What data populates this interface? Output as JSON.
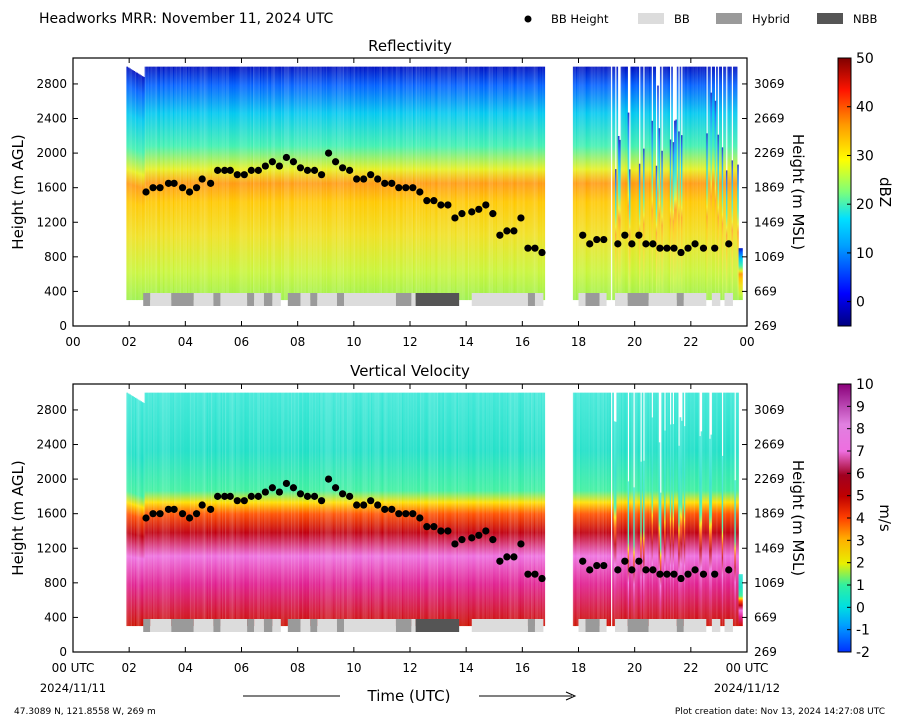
{
  "header": {
    "title": "Headworks MRR:  November 11, 2024 UTC",
    "legend": [
      {
        "label": "BB Height",
        "kind": "marker",
        "color": "#000000"
      },
      {
        "label": "BB",
        "kind": "patch",
        "color": "#dcdcdc"
      },
      {
        "label": "Hybrid",
        "kind": "patch",
        "color": "#9a9a9a"
      },
      {
        "label": "NBB",
        "kind": "patch",
        "color": "#555555"
      }
    ]
  },
  "chart_data": [
    {
      "type": "heatmap",
      "title": "Reflectivity",
      "ylabel": "Height (m AGL)",
      "ylabel_right": "Height (m MSL)",
      "colorbar_label": "dBZ",
      "colorbar_ticks": [
        "50",
        "40",
        "30",
        "20",
        "10",
        "0"
      ],
      "colorbar_range": [
        -5,
        50
      ],
      "xlim": [
        0,
        24
      ],
      "ylim": [
        0,
        3100
      ],
      "x_ticks": [
        "00",
        "02",
        "04",
        "06",
        "08",
        "10",
        "12",
        "14",
        "16",
        "18",
        "20",
        "22",
        "00"
      ],
      "y_ticks": [
        "0",
        "400",
        "800",
        "1200",
        "1600",
        "2000",
        "2400",
        "2800"
      ],
      "y_ticks_right": [
        "269",
        "669",
        "1069",
        "1469",
        "1869",
        "2269",
        "2669",
        "3069"
      ]
    },
    {
      "type": "heatmap",
      "title": "Vertical Velocity",
      "ylabel": "Height (m AGL)",
      "ylabel_right": "Height (m MSL)",
      "colorbar_label": "m/s",
      "colorbar_ticks": [
        "10",
        "9",
        "8",
        "7",
        "6",
        "5",
        "4",
        "3",
        "2",
        "1",
        "0",
        "-1",
        "-2"
      ],
      "colorbar_range": [
        -2,
        10
      ],
      "xlim": [
        0,
        24
      ],
      "ylim": [
        0,
        3100
      ],
      "x_ticks": [
        "00 UTC",
        "02",
        "04",
        "06",
        "08",
        "10",
        "12",
        "14",
        "16",
        "18",
        "20",
        "22",
        "00 UTC"
      ],
      "y_ticks": [
        "0",
        "400",
        "800",
        "1200",
        "1600",
        "2000",
        "2400",
        "2800"
      ],
      "y_ticks_right": [
        "269",
        "669",
        "1069",
        "1469",
        "1869",
        "2269",
        "2669",
        "3069"
      ]
    }
  ],
  "bb_height": {
    "x": [
      2.6,
      2.85,
      3.1,
      3.4,
      3.6,
      3.9,
      4.15,
      4.4,
      4.6,
      4.9,
      5.15,
      5.4,
      5.6,
      5.85,
      6.1,
      6.35,
      6.6,
      6.85,
      7.1,
      7.35,
      7.6,
      7.85,
      8.1,
      8.35,
      8.6,
      8.85,
      9.1,
      9.35,
      9.6,
      9.85,
      10.1,
      10.35,
      10.6,
      10.85,
      11.1,
      11.35,
      11.6,
      11.85,
      12.1,
      12.35,
      12.6,
      12.85,
      13.1,
      13.35,
      13.6,
      13.85,
      14.2,
      14.45,
      14.7,
      14.95,
      15.2,
      15.45,
      15.7,
      15.95,
      16.2,
      16.45,
      16.7,
      18.15,
      18.4,
      18.65,
      18.9,
      19.4,
      19.65,
      19.9,
      20.15,
      20.4,
      20.65,
      20.9,
      21.15,
      21.4,
      21.65,
      21.9,
      22.15,
      22.45,
      22.85,
      23.35
    ],
    "y": [
      1550,
      1600,
      1600,
      1650,
      1650,
      1600,
      1550,
      1600,
      1700,
      1650,
      1800,
      1800,
      1800,
      1750,
      1750,
      1800,
      1800,
      1850,
      1900,
      1850,
      1950,
      1900,
      1830,
      1800,
      1800,
      1750,
      2000,
      1900,
      1830,
      1800,
      1700,
      1700,
      1750,
      1700,
      1650,
      1650,
      1600,
      1600,
      1600,
      1550,
      1450,
      1450,
      1400,
      1400,
      1250,
      1300,
      1320,
      1350,
      1400,
      1300,
      1050,
      1100,
      1100,
      1250,
      900,
      900,
      850,
      1050,
      950,
      1000,
      1000,
      950,
      1050,
      950,
      1050,
      950,
      950,
      900,
      900,
      900,
      850,
      900,
      950,
      900,
      900,
      950
    ]
  },
  "bb_type": [
    {
      "start": 2.5,
      "end": 2.75,
      "type": "Hybrid"
    },
    {
      "start": 2.75,
      "end": 3.5,
      "type": "BB"
    },
    {
      "start": 3.5,
      "end": 4.3,
      "type": "Hybrid"
    },
    {
      "start": 4.3,
      "end": 5.0,
      "type": "BB"
    },
    {
      "start": 5.0,
      "end": 5.25,
      "type": "Hybrid"
    },
    {
      "start": 5.25,
      "end": 6.2,
      "type": "BB"
    },
    {
      "start": 6.2,
      "end": 6.45,
      "type": "Hybrid"
    },
    {
      "start": 6.45,
      "end": 6.8,
      "type": "BB"
    },
    {
      "start": 6.8,
      "end": 7.1,
      "type": "Hybrid"
    },
    {
      "start": 7.1,
      "end": 7.4,
      "type": "BB"
    },
    {
      "start": 7.65,
      "end": 8.1,
      "type": "Hybrid"
    },
    {
      "start": 8.1,
      "end": 8.45,
      "type": "BB"
    },
    {
      "start": 8.45,
      "end": 8.7,
      "type": "Hybrid"
    },
    {
      "start": 8.7,
      "end": 9.4,
      "type": "BB"
    },
    {
      "start": 9.4,
      "end": 9.65,
      "type": "Hybrid"
    },
    {
      "start": 9.65,
      "end": 11.5,
      "type": "BB"
    },
    {
      "start": 11.5,
      "end": 12.05,
      "type": "Hybrid"
    },
    {
      "start": 12.05,
      "end": 12.2,
      "type": "BB"
    },
    {
      "start": 12.2,
      "end": 13.75,
      "type": "NBB"
    },
    {
      "start": 14.2,
      "end": 16.2,
      "type": "BB"
    },
    {
      "start": 16.2,
      "end": 16.45,
      "type": "Hybrid"
    },
    {
      "start": 16.45,
      "end": 16.75,
      "type": "BB"
    },
    {
      "start": 18.0,
      "end": 18.25,
      "type": "BB"
    },
    {
      "start": 18.25,
      "end": 18.75,
      "type": "Hybrid"
    },
    {
      "start": 18.75,
      "end": 19.0,
      "type": "BB"
    },
    {
      "start": 19.3,
      "end": 19.75,
      "type": "BB"
    },
    {
      "start": 19.75,
      "end": 20.5,
      "type": "Hybrid"
    },
    {
      "start": 20.5,
      "end": 21.5,
      "type": "BB"
    },
    {
      "start": 21.5,
      "end": 21.75,
      "type": "Hybrid"
    },
    {
      "start": 21.75,
      "end": 22.55,
      "type": "BB"
    },
    {
      "start": 22.75,
      "end": 23.05,
      "type": "BB"
    },
    {
      "start": 23.2,
      "end": 23.5,
      "type": "BB"
    }
  ],
  "echo_gaps": [
    [
      0,
      1.9
    ],
    [
      16.8,
      17.8
    ],
    [
      19.15,
      19.2
    ],
    [
      23.7,
      24
    ]
  ],
  "footer": {
    "start_date": "2024/11/11",
    "end_date": "2024/11/12",
    "xlabel": "Time (UTC)",
    "location": "47.3089 N, 121.8558 W, 269 m",
    "creation": "Plot creation date: Nov 13, 2024 14:27:08 UTC"
  }
}
